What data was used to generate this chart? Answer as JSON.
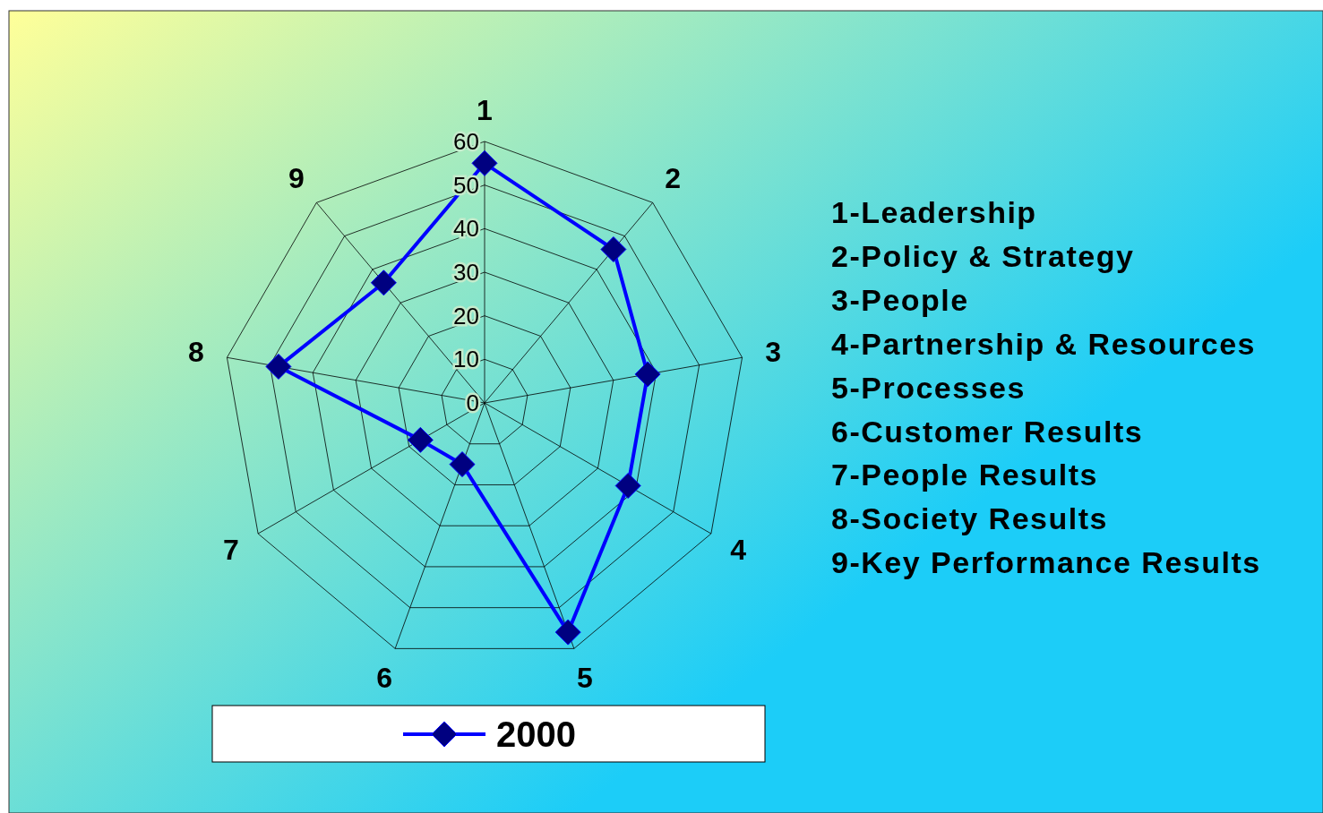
{
  "chart_data": {
    "type": "radar",
    "categories": [
      "1",
      "2",
      "3",
      "4",
      "5",
      "6",
      "7",
      "8",
      "9"
    ],
    "series": [
      {
        "name": "2000",
        "color": "#0000ff",
        "values": [
          55,
          46,
          38,
          38,
          56,
          15,
          17,
          48,
          36
        ]
      }
    ],
    "ylim": [
      0,
      60
    ],
    "yticks": [
      0,
      10,
      20,
      30,
      40,
      50,
      60
    ],
    "grid": true,
    "marker": "diamond",
    "legend": "bottom",
    "annotations": [
      "1-Leadership",
      "2-Policy & Strategy",
      "3-People",
      "4-Partnership & Resources",
      "5-Processes",
      "6-Customer Results",
      "7-People Results",
      "8-Society Results",
      "9-Key Performance Results"
    ]
  }
}
